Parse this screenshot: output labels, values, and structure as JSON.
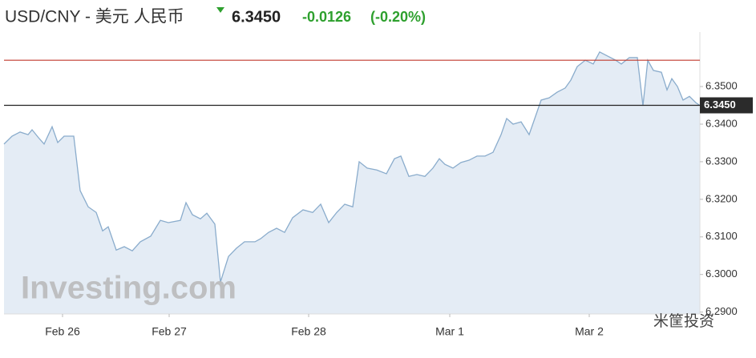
{
  "chart_data": {
    "type": "area",
    "title": "USD/CNY - 美元 人民币",
    "price": "6.3450",
    "change": "-0.0126",
    "change_pct": "(-0.20%)",
    "watermark": "Investing.com",
    "source": "米筐投资",
    "color": "#8aaccc",
    "fill": "#e4ecf5",
    "x": [
      5,
      15,
      25,
      35,
      40,
      48,
      55,
      65,
      72,
      80,
      92,
      100,
      110,
      120,
      128,
      135,
      145,
      155,
      165,
      175,
      188,
      200,
      210,
      225,
      232,
      240,
      250,
      258,
      268,
      275,
      285,
      295,
      305,
      318,
      325,
      335,
      345,
      355,
      365,
      378,
      390,
      400,
      410,
      420,
      430,
      440,
      448,
      458,
      470,
      482,
      492,
      500,
      510,
      520,
      530,
      540,
      548,
      555,
      565,
      575,
      585,
      595,
      605,
      615,
      625,
      632,
      640,
      650,
      660,
      668,
      675,
      685,
      695,
      705,
      712,
      720,
      730,
      740,
      748,
      758,
      768,
      775,
      785,
      795,
      802,
      808,
      815,
      825,
      832,
      838,
      845,
      852,
      860,
      868,
      873
    ],
    "values": [
      6.3347,
      6.3368,
      6.3379,
      6.3372,
      6.3385,
      6.3364,
      6.3347,
      6.3393,
      6.3351,
      6.3368,
      6.3368,
      6.3223,
      6.318,
      6.3165,
      6.3116,
      6.3127,
      6.3065,
      6.3074,
      6.3063,
      6.3087,
      6.3102,
      6.3144,
      6.3138,
      6.3144,
      6.3191,
      6.3159,
      6.3148,
      6.3163,
      6.3134,
      6.298,
      6.3048,
      6.307,
      6.3087,
      6.3087,
      6.3095,
      6.3112,
      6.3123,
      6.3112,
      6.3151,
      6.3172,
      6.3165,
      6.3187,
      6.3138,
      6.3165,
      6.3187,
      6.318,
      6.33,
      6.3283,
      6.3278,
      6.3268,
      6.3308,
      6.3315,
      6.3261,
      6.3266,
      6.3261,
      6.3283,
      6.3308,
      6.3293,
      6.3283,
      6.3298,
      6.3304,
      6.3315,
      6.3315,
      6.3325,
      6.3372,
      6.3415,
      6.34,
      6.3406,
      6.3372,
      6.3421,
      6.3464,
      6.347,
      6.3485,
      6.3496,
      6.3517,
      6.3553,
      6.357,
      6.356,
      6.3592,
      6.3581,
      6.357,
      6.356,
      6.3577,
      6.3577,
      6.3449,
      6.357,
      6.3543,
      6.3538,
      6.3491,
      6.3521,
      6.35,
      6.3464,
      6.3474,
      6.3457,
      6.345
    ],
    "xlim": [
      5,
      873
    ],
    "xticks": [
      {
        "value": 78,
        "label": "Feb 26"
      },
      {
        "value": 211,
        "label": "Feb 27"
      },
      {
        "value": 385,
        "label": "Feb 28"
      },
      {
        "value": 561,
        "label": "Mar 1"
      },
      {
        "value": 735,
        "label": "Mar 2"
      }
    ],
    "ylim": [
      6.2895,
      6.3645
    ],
    "yticks": [
      {
        "value": 6.29,
        "label": "6.2900"
      },
      {
        "value": 6.3,
        "label": "6.3000"
      },
      {
        "value": 6.31,
        "label": "6.3100"
      },
      {
        "value": 6.32,
        "label": "6.3200"
      },
      {
        "value": 6.33,
        "label": "6.3300"
      },
      {
        "value": 6.34,
        "label": "6.3400"
      },
      {
        "value": 6.35,
        "label": "6.3500"
      }
    ],
    "reference_lines": [
      {
        "value": 6.357,
        "color": "#c0392b"
      },
      {
        "value": 6.345,
        "color": "#222222",
        "label": "6.3450"
      }
    ]
  }
}
